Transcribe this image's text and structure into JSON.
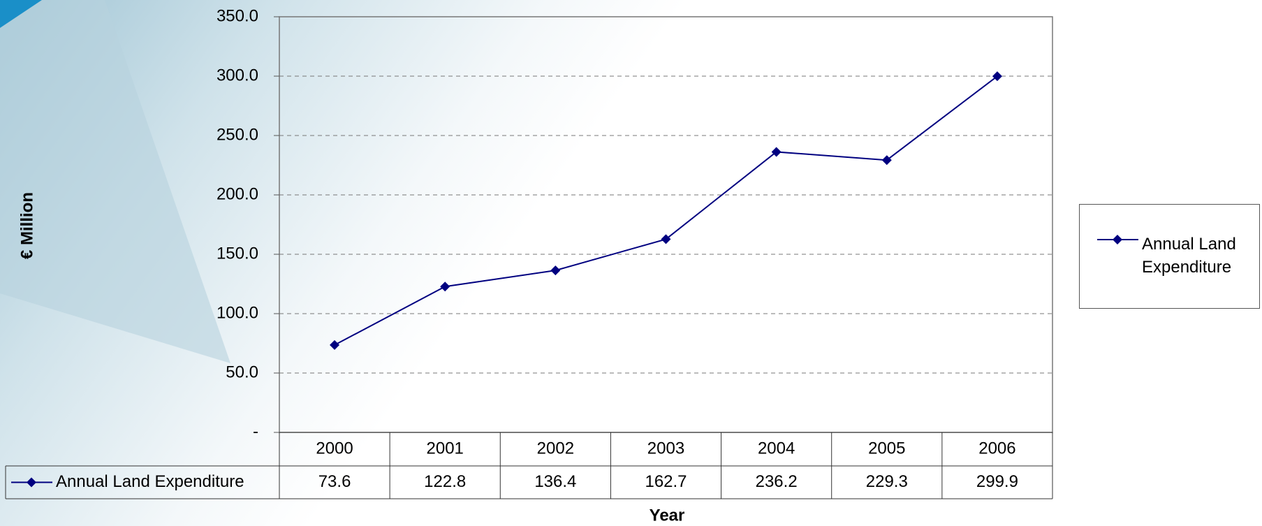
{
  "chart_data": {
    "type": "line",
    "x_label": "Year",
    "y_label": "€ Million",
    "categories": [
      "2000",
      "2001",
      "2002",
      "2003",
      "2004",
      "2005",
      "2006"
    ],
    "series": [
      {
        "name": "Annual Land Expenditure",
        "color": "#000080",
        "values": [
          73.6,
          122.8,
          136.4,
          162.7,
          236.2,
          229.3,
          299.9
        ]
      }
    ],
    "ylim": [
      0,
      350
    ],
    "yticks": [
      {
        "value": 0,
        "label": "-"
      },
      {
        "value": 50,
        "label": "50.0"
      },
      {
        "value": 100,
        "label": "100.0"
      },
      {
        "value": 150,
        "label": "150.0"
      },
      {
        "value": 200,
        "label": "200.0"
      },
      {
        "value": 250,
        "label": "250.0"
      },
      {
        "value": 300,
        "label": "300.0"
      },
      {
        "value": 350,
        "label": "350.0"
      }
    ],
    "grid": true,
    "legend": "right",
    "data_table": true
  }
}
